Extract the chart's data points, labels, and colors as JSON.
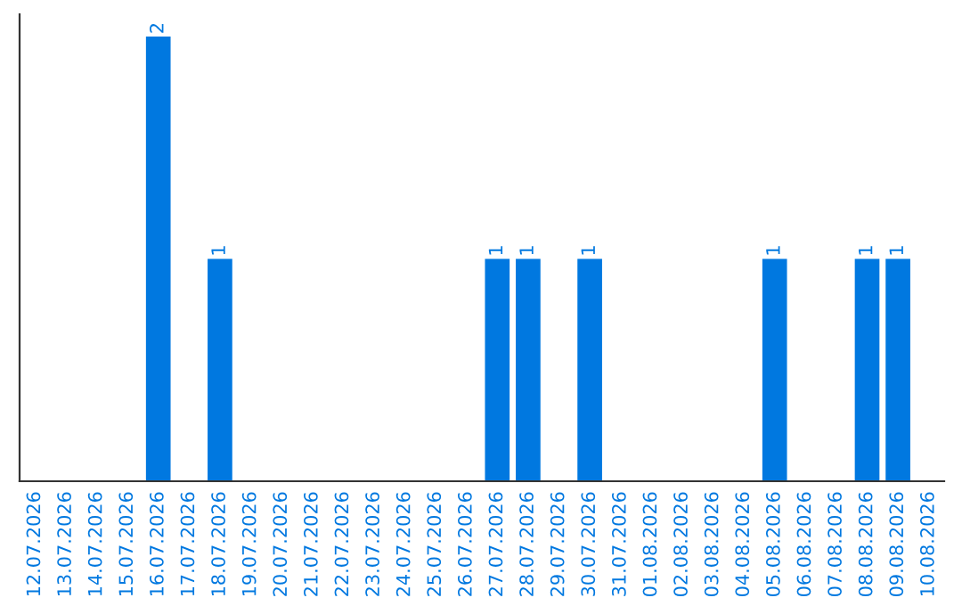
{
  "chart_data": {
    "type": "bar",
    "categories": [
      "12.07.2026",
      "13.07.2026",
      "14.07.2026",
      "15.07.2026",
      "16.07.2026",
      "17.07.2026",
      "18.07.2026",
      "19.07.2026",
      "20.07.2026",
      "21.07.2026",
      "22.07.2026",
      "23.07.2026",
      "24.07.2026",
      "25.07.2026",
      "26.07.2026",
      "27.07.2026",
      "28.07.2026",
      "29.07.2026",
      "30.07.2026",
      "31.07.2026",
      "01.08.2026",
      "02.08.2026",
      "03.08.2026",
      "04.08.2026",
      "05.08.2026",
      "06.08.2026",
      "07.08.2026",
      "08.08.2026",
      "09.08.2026",
      "10.08.2026"
    ],
    "values": [
      0,
      0,
      0,
      0,
      2,
      0,
      1,
      0,
      0,
      0,
      0,
      0,
      0,
      0,
      0,
      1,
      1,
      0,
      1,
      0,
      0,
      0,
      0,
      0,
      1,
      0,
      0,
      1,
      1,
      0
    ],
    "color": "#0078e0",
    "value_labels": [
      null,
      null,
      null,
      null,
      "2",
      null,
      "1",
      null,
      null,
      null,
      null,
      null,
      null,
      null,
      null,
      "1",
      "1",
      null,
      "1",
      null,
      null,
      null,
      null,
      null,
      "1",
      null,
      null,
      "1",
      "1",
      null
    ],
    "grid": false,
    "legend": false,
    "tick_labels": "x"
  }
}
